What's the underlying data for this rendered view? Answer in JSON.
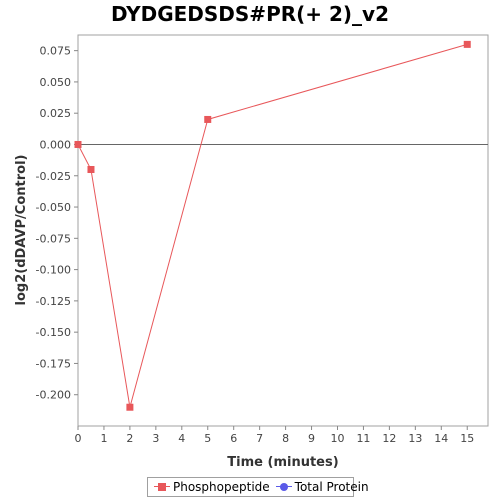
{
  "chart_data": {
    "type": "line",
    "title": "DYDGEDSDS#PR(+ 2)_v2",
    "xlabel": "Time (minutes)",
    "ylabel": "log2(dDAVP/Control)",
    "xlim": [
      0,
      15.8
    ],
    "ylim": [
      -0.225,
      0.0875
    ],
    "x_ticks": [
      "0",
      "1",
      "2",
      "3",
      "4",
      "5",
      "6",
      "7",
      "8",
      "9",
      "10",
      "11",
      "12",
      "13",
      "14",
      "15"
    ],
    "y_ticks": [
      "0.075",
      "0.050",
      "0.025",
      "0.000",
      "-0.025",
      "-0.050",
      "-0.075",
      "-0.100",
      "-0.125",
      "-0.150",
      "-0.175",
      "-0.200"
    ],
    "y_tick_values": [
      0.075,
      0.05,
      0.025,
      0,
      -0.025,
      -0.05,
      -0.075,
      -0.1,
      -0.125,
      -0.15,
      -0.175,
      -0.2
    ],
    "grid": false,
    "zero_line": true,
    "legend_position": "bottom",
    "series": [
      {
        "name": "Phosphopeptide",
        "color": "#e8575a",
        "marker": "square",
        "x": [
          0,
          0.5,
          2,
          5,
          15
        ],
        "y": [
          0.0,
          -0.02,
          -0.21,
          0.02,
          0.08
        ]
      },
      {
        "name": "Total Protein",
        "color": "#5a5ae8",
        "marker": "circle",
        "x": [],
        "y": []
      }
    ]
  }
}
